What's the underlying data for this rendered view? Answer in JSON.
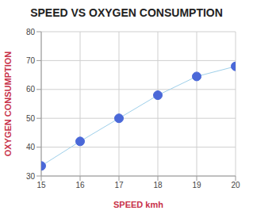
{
  "chart_data": {
    "type": "line",
    "title": "SPEED VS OXYGEN CONSUMPTION",
    "x_label": "SPEED kmh",
    "y_label": "OXYGEN CONSUMPTION",
    "x": [
      15,
      16,
      17,
      18,
      19,
      20
    ],
    "series": [
      {
        "name": "OXYGEN CONSUMPTION",
        "color": "#4a68d8",
        "values": [
          33.5,
          42,
          50,
          58,
          64.5,
          68
        ],
        "marker": "circle"
      }
    ],
    "xlim": [
      15,
      20
    ],
    "xticks": [
      15,
      16,
      17,
      18,
      19,
      20
    ],
    "ylim": [
      30,
      80
    ],
    "yticks": [
      30,
      40,
      50,
      60,
      70,
      80
    ],
    "grid": true
  }
}
